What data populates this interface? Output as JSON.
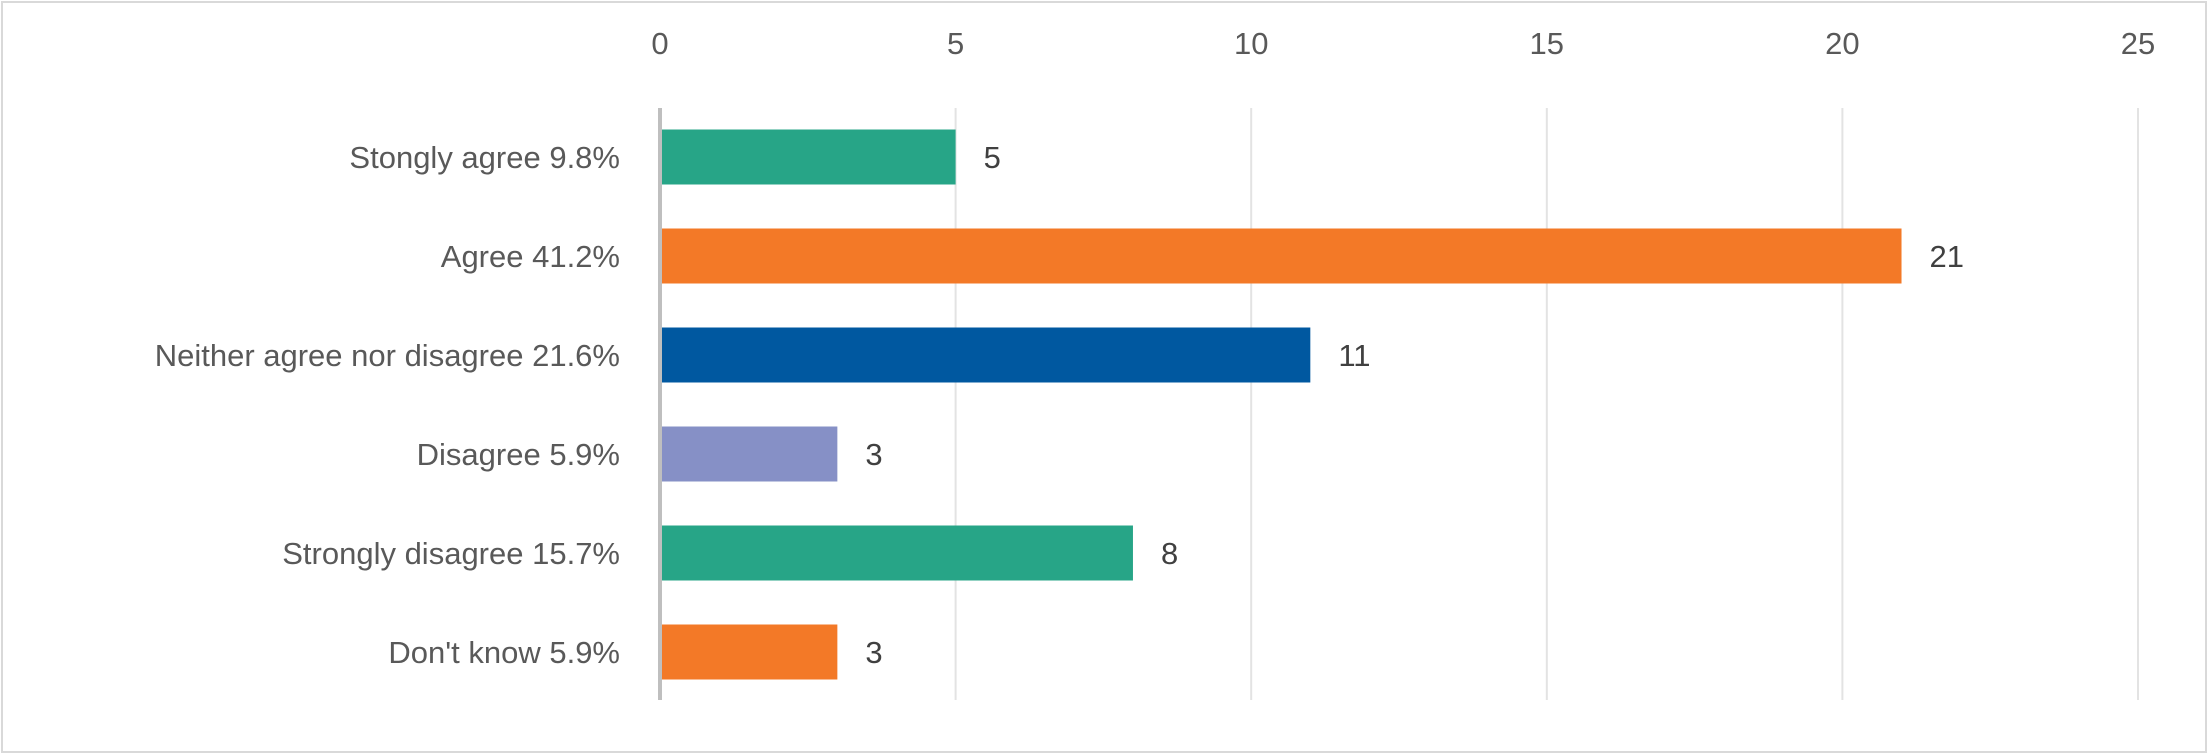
{
  "chart_data": {
    "type": "bar",
    "orientation": "horizontal",
    "title": "",
    "xlabel": "",
    "ylabel": "",
    "xlim": [
      0,
      25
    ],
    "x_ticks": [
      0,
      5,
      10,
      15,
      20,
      25
    ],
    "x_tick_labels": [
      "0",
      "5",
      "10",
      "15",
      "20",
      "25"
    ],
    "x_axis_position": "top",
    "grid": "vertical",
    "legend": "none",
    "categories": [
      "Stongly agree 9.8%",
      "Agree 41.2%",
      "Neither agree nor disagree 21.6%",
      "Disagree 5.9%",
      "Strongly disagree 15.7%",
      "Don't know 5.9%"
    ],
    "values": [
      5,
      21,
      11,
      3,
      8,
      3
    ],
    "data_labels": [
      "5",
      "21",
      "11",
      "3",
      "8",
      "3"
    ],
    "colors": [
      "#27a587",
      "#f37927",
      "#0058a0",
      "#8690c6",
      "#27a587",
      "#f37927"
    ]
  }
}
